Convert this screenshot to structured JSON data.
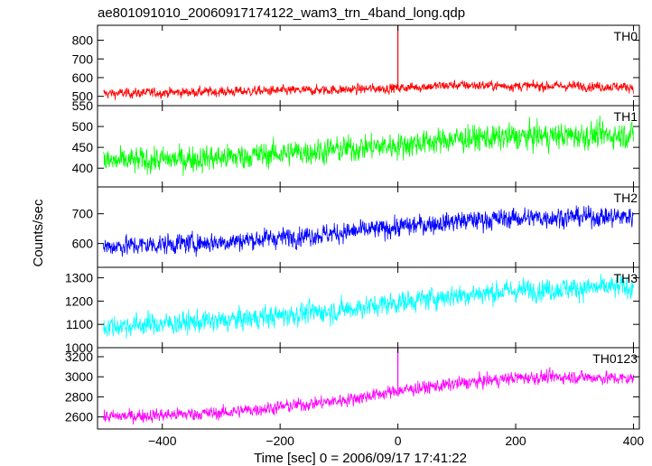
{
  "chart_data": {
    "type": "line",
    "title": "ae801091010_20060917174122_wam3_trn_4band_long.qdp",
    "xlabel": "Time [sec] 0 = 2006/09/17 17:41:22",
    "ylabel": "Counts/sec",
    "xlim": [
      -510,
      410
    ],
    "x_ticks": [
      -400,
      -200,
      0,
      200,
      400
    ],
    "x_tick_labels": [
      "−400",
      "−200",
      "0",
      "200",
      "400"
    ],
    "grid": false,
    "legend": "none",
    "panels": [
      {
        "name": "TH0",
        "color": "#ff0000",
        "ylim": [
          450,
          880
        ],
        "y_ticks": [
          500,
          600,
          700,
          800
        ],
        "y_tick_labels": [
          "500",
          "600",
          "700",
          "800"
        ],
        "trend": [
          [
            -500,
            515
          ],
          [
            -300,
            525
          ],
          [
            -100,
            535
          ],
          [
            0,
            545
          ],
          [
            100,
            560
          ],
          [
            200,
            555
          ],
          [
            300,
            555
          ],
          [
            400,
            550
          ]
        ],
        "noise": 22,
        "spike": {
          "x": 0,
          "value": 880
        }
      },
      {
        "name": "TH1",
        "color": "#00ff00",
        "ylim": [
          355,
          550
        ],
        "y_ticks": [
          400,
          450,
          500,
          550
        ],
        "y_tick_labels": [
          "400",
          "450",
          "500",
          "550"
        ],
        "trend": [
          [
            -500,
            415
          ],
          [
            -300,
            425
          ],
          [
            -100,
            445
          ],
          [
            0,
            455
          ],
          [
            100,
            470
          ],
          [
            200,
            475
          ],
          [
            300,
            478
          ],
          [
            400,
            480
          ]
        ],
        "noise": 26
      },
      {
        "name": "TH2",
        "color": "#0000ff",
        "ylim": [
          520,
          790
        ],
        "y_ticks": [
          600,
          700
        ],
        "y_tick_labels": [
          "600",
          "700"
        ],
        "trend": [
          [
            -500,
            590
          ],
          [
            -300,
            605
          ],
          [
            -100,
            635
          ],
          [
            0,
            655
          ],
          [
            100,
            675
          ],
          [
            200,
            685
          ],
          [
            300,
            690
          ],
          [
            400,
            690
          ]
        ],
        "noise": 28
      },
      {
        "name": "TH3",
        "color": "#00ffff",
        "ylim": [
          1000,
          1345
        ],
        "y_ticks": [
          1000,
          1100,
          1200,
          1300
        ],
        "y_tick_labels": [
          "1000",
          "1100",
          "1200",
          "1300"
        ],
        "trend": [
          [
            -500,
            1090
          ],
          [
            -300,
            1115
          ],
          [
            -100,
            1160
          ],
          [
            0,
            1195
          ],
          [
            100,
            1225
          ],
          [
            200,
            1245
          ],
          [
            300,
            1255
          ],
          [
            400,
            1260
          ]
        ],
        "noise": 40
      },
      {
        "name": "TH0123",
        "color": "#ff00ff",
        "ylim": [
          2480,
          3290
        ],
        "y_ticks": [
          2600,
          2800,
          3000,
          3200
        ],
        "y_tick_labels": [
          "2600",
          "2800",
          "3000",
          "3200"
        ],
        "trend": [
          [
            -500,
            2600
          ],
          [
            -300,
            2640
          ],
          [
            -100,
            2760
          ],
          [
            0,
            2860
          ],
          [
            100,
            2930
          ],
          [
            200,
            2990
          ],
          [
            300,
            3000
          ],
          [
            400,
            2980
          ]
        ],
        "noise": 55,
        "spike": {
          "x": 0,
          "value": 3290
        }
      }
    ]
  }
}
